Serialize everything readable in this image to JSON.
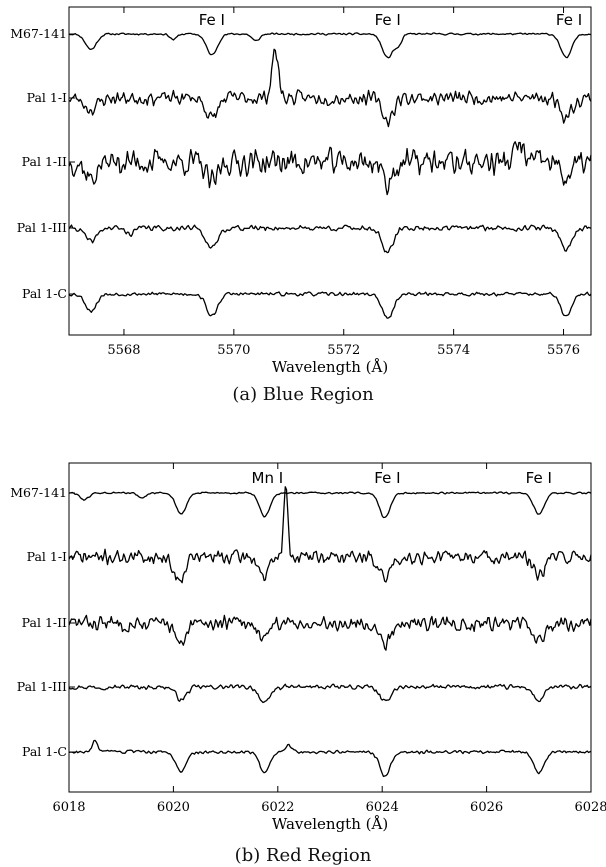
{
  "chart_data": [
    {
      "type": "line",
      "caption": "(a) Blue Region",
      "xlabel": "Wavelength (Å)",
      "xlim": [
        5567.0,
        5576.5
      ],
      "xticks": [
        5568,
        5570,
        5572,
        5574,
        5576
      ],
      "line_labels": [
        {
          "text": "Fe I",
          "x": 5569.6
        },
        {
          "text": "Fe I",
          "x": 5572.8
        },
        {
          "text": "Fe I",
          "x": 5576.1
        }
      ],
      "series": [
        {
          "name": "M67-141",
          "noise": 0.04,
          "seed": 11,
          "features": [
            [
              5567.4,
              -0.55,
              0.1
            ],
            [
              5568.9,
              -0.2,
              0.06
            ],
            [
              5569.6,
              -0.75,
              0.1
            ],
            [
              5570.4,
              -0.25,
              0.07
            ],
            [
              5572.8,
              -0.85,
              0.1
            ],
            [
              5573.0,
              -0.35,
              0.06
            ],
            [
              5576.05,
              -0.85,
              0.1
            ]
          ]
        },
        {
          "name": "Pal 1-I",
          "noise": 0.3,
          "seed": 23,
          "features": [
            [
              5567.4,
              -0.4,
              0.12
            ],
            [
              5569.6,
              -0.75,
              0.1
            ],
            [
              5570.75,
              1.7,
              0.06
            ],
            [
              5572.8,
              -0.8,
              0.1
            ],
            [
              5576.05,
              -0.7,
              0.1
            ]
          ]
        },
        {
          "name": "Pal 1-II",
          "noise": 0.55,
          "seed": 37,
          "features": [
            [
              5567.4,
              -0.6,
              0.1
            ],
            [
              5569.6,
              -0.8,
              0.1
            ],
            [
              5572.8,
              -0.7,
              0.1
            ],
            [
              5575.2,
              0.6,
              0.08
            ],
            [
              5576.05,
              -0.55,
              0.1
            ]
          ]
        },
        {
          "name": "Pal 1-III",
          "noise": 0.12,
          "seed": 41,
          "features": [
            [
              5567.4,
              -0.5,
              0.1
            ],
            [
              5568.1,
              -0.2,
              0.08
            ],
            [
              5569.6,
              -0.75,
              0.1
            ],
            [
              5572.8,
              -0.9,
              0.1
            ],
            [
              5576.05,
              -0.75,
              0.1
            ]
          ]
        },
        {
          "name": "Pal 1-C",
          "noise": 0.08,
          "seed": 53,
          "features": [
            [
              5567.4,
              -0.6,
              0.1
            ],
            [
              5569.6,
              -0.8,
              0.1
            ],
            [
              5572.8,
              -0.9,
              0.1
            ],
            [
              5576.05,
              -0.8,
              0.1
            ]
          ]
        }
      ]
    },
    {
      "type": "line",
      "caption": "(b) Red Region",
      "xlabel": "Wavelength (Å)",
      "xlim": [
        6018,
        6028
      ],
      "xticks": [
        6018,
        6020,
        6022,
        6024,
        6026,
        6028
      ],
      "line_labels": [
        {
          "text": "Mn I",
          "x": 6021.8
        },
        {
          "text": "Fe I",
          "x": 6024.1
        },
        {
          "text": "Fe I",
          "x": 6027.0
        }
      ],
      "series": [
        {
          "name": "M67-141",
          "noise": 0.04,
          "seed": 61,
          "features": [
            [
              6018.3,
              -0.25,
              0.08
            ],
            [
              6019.4,
              -0.2,
              0.07
            ],
            [
              6020.15,
              -0.75,
              0.1
            ],
            [
              6021.75,
              -0.85,
              0.1
            ],
            [
              6024.05,
              -0.9,
              0.1
            ],
            [
              6027.0,
              -0.75,
              0.1
            ]
          ]
        },
        {
          "name": "Pal 1-I",
          "noise": 0.3,
          "seed": 71,
          "features": [
            [
              6020.1,
              -0.8,
              0.1
            ],
            [
              6021.75,
              -0.7,
              0.1
            ],
            [
              6022.15,
              2.5,
              0.04
            ],
            [
              6024.05,
              -0.8,
              0.1
            ],
            [
              6027.0,
              -0.75,
              0.1
            ]
          ]
        },
        {
          "name": "Pal 1-II",
          "noise": 0.32,
          "seed": 83,
          "features": [
            [
              6020.15,
              -0.85,
              0.1
            ],
            [
              6021.75,
              -0.6,
              0.1
            ],
            [
              6024.05,
              -0.75,
              0.1
            ],
            [
              6027.0,
              -0.75,
              0.1
            ]
          ]
        },
        {
          "name": "Pal 1-III",
          "noise": 0.1,
          "seed": 97,
          "features": [
            [
              6020.15,
              -0.45,
              0.1
            ],
            [
              6021.75,
              -0.6,
              0.1
            ],
            [
              6024.05,
              -0.55,
              0.1
            ],
            [
              6027.0,
              -0.5,
              0.1
            ]
          ]
        },
        {
          "name": "Pal 1-C",
          "noise": 0.07,
          "seed": 103,
          "features": [
            [
              6018.5,
              0.4,
              0.05
            ],
            [
              6020.15,
              -0.7,
              0.1
            ],
            [
              6021.75,
              -0.75,
              0.1
            ],
            [
              6022.2,
              0.25,
              0.06
            ],
            [
              6024.05,
              -0.85,
              0.1
            ],
            [
              6027.0,
              -0.75,
              0.1
            ]
          ]
        }
      ]
    }
  ]
}
